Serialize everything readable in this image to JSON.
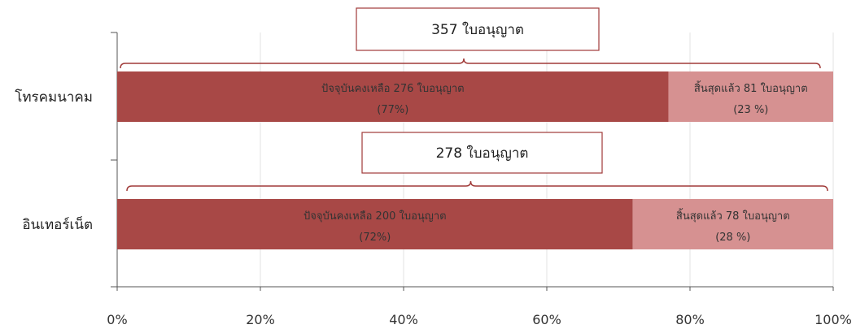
{
  "colors": {
    "active": "#A84846",
    "expired": "#D69191",
    "bracket": "#A03A38",
    "grid": "#E3E3E3",
    "axis": "#555555"
  },
  "chart_data": {
    "type": "bar",
    "orientation": "horizontal",
    "stacked": "percent",
    "title": "",
    "xlabel": "",
    "ylabel": "",
    "xlim": [
      0,
      100
    ],
    "x_ticks": [
      "0%",
      "20%",
      "40%",
      "60%",
      "80%",
      "100%"
    ],
    "grid": true,
    "legend": "none",
    "categories": [
      "โทรคมนาคม",
      "อินเทอร์เน็ต"
    ],
    "series": [
      {
        "values": [
          77,
          72
        ]
      },
      {
        "values": [
          23,
          28
        ]
      }
    ],
    "data_labels": [
      [
        {
          "line1": "ปัจจุบันคงเหลือ 276 ใบอนุญาต",
          "line2": "(77%)"
        },
        {
          "line1": "สิ้นสุดแล้ว 81  ใบอนุญาต",
          "line2": "(23 %)"
        }
      ],
      [
        {
          "line1": "ปัจจุบันคงเหลือ 200 ใบอนุญาต",
          "line2": "(72%)"
        },
        {
          "line1": "สิ้นสุดแล้ว 78 ใบอนุญาต",
          "line2": "(28 %)"
        }
      ]
    ],
    "totals": [
      "357 ใบอนุญาต",
      "278 ใบอนุญาต"
    ]
  }
}
